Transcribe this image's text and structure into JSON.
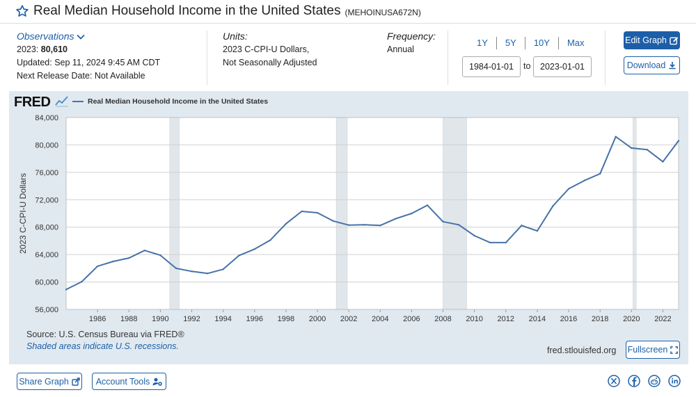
{
  "header": {
    "title": "Real Median Household Income in the United States",
    "series_id": "(MEHOINUSA672N)"
  },
  "observations": {
    "heading": "Observations",
    "latest_label": "2023:",
    "latest_value": "80,610",
    "updated": "Updated: Sep 11, 2024 9:45 AM CDT",
    "next_release": "Next Release Date: Not Available"
  },
  "units": {
    "heading": "Units:",
    "line1": "2023 C-CPI-U Dollars,",
    "line2": "Not Seasonally Adjusted"
  },
  "frequency": {
    "heading": "Frequency:",
    "value": "Annual"
  },
  "range_buttons": [
    "1Y",
    "5Y",
    "10Y",
    "Max"
  ],
  "date_range": {
    "start": "1984-01-01",
    "to_label": "to",
    "end": "2023-01-01"
  },
  "buttons": {
    "edit_graph": "Edit Graph",
    "download": "Download",
    "fullscreen": "Fullscreen",
    "share_graph": "Share Graph",
    "account_tools": "Account Tools"
  },
  "graph_footer": {
    "logo": "FRED",
    "source": "Source: U.S. Census Bureau via FRED®",
    "shaded_note": "Shaded areas indicate U.S. recessions.",
    "site": "fred.stlouisfed.org"
  },
  "colors": {
    "series_line": "#4572a7",
    "accent": "#1c5fa8",
    "panel_bg": "#e1e9f0",
    "recession_shade": "#e1e6ea"
  },
  "social_icons": [
    "x-icon",
    "facebook-icon",
    "reddit-icon",
    "linkedin-icon"
  ],
  "chart_data": {
    "type": "line",
    "title": "",
    "xlabel": "",
    "ylabel": "2023 C-CPI-U Dollars",
    "legend": {
      "position": "top-left",
      "entries": [
        "Real Median Household Income in the United States"
      ]
    },
    "grid": true,
    "xlim": [
      1984,
      2023
    ],
    "ylim": [
      56000,
      84000
    ],
    "y_ticks": [
      56000,
      60000,
      64000,
      68000,
      72000,
      76000,
      80000,
      84000
    ],
    "y_tick_labels": [
      "56,000",
      "60,000",
      "64,000",
      "68,000",
      "72,000",
      "76,000",
      "80,000",
      "84,000"
    ],
    "x_ticks": [
      1986,
      1988,
      1990,
      1992,
      1994,
      1996,
      1998,
      2000,
      2002,
      2004,
      2006,
      2008,
      2010,
      2012,
      2014,
      2016,
      2018,
      2020,
      2022
    ],
    "recessions": [
      [
        1990.6,
        1991.2
      ],
      [
        2001.2,
        2001.9
      ],
      [
        2008.0,
        2009.5
      ],
      [
        2020.1,
        2020.3
      ]
    ],
    "series": [
      {
        "name": "Real Median Household Income in the United States",
        "x": [
          1984,
          1985,
          1986,
          1987,
          1988,
          1989,
          1990,
          1991,
          1992,
          1993,
          1994,
          1995,
          1996,
          1997,
          1998,
          1999,
          2000,
          2001,
          2002,
          2003,
          2004,
          2005,
          2006,
          2007,
          2008,
          2009,
          2010,
          2011,
          2012,
          2013,
          2014,
          2015,
          2016,
          2017,
          2018,
          2019,
          2020,
          2021,
          2022,
          2023
        ],
        "values": [
          58900,
          60050,
          62300,
          63000,
          63500,
          64600,
          63900,
          62000,
          61550,
          61250,
          61850,
          63850,
          64800,
          66100,
          68500,
          70300,
          70100,
          68900,
          68300,
          68350,
          68250,
          69250,
          70000,
          71200,
          68800,
          68350,
          66750,
          65750,
          65750,
          68250,
          67450,
          71100,
          73600,
          74800,
          75800,
          81200,
          79550,
          79300,
          77550,
          80610
        ]
      }
    ]
  }
}
